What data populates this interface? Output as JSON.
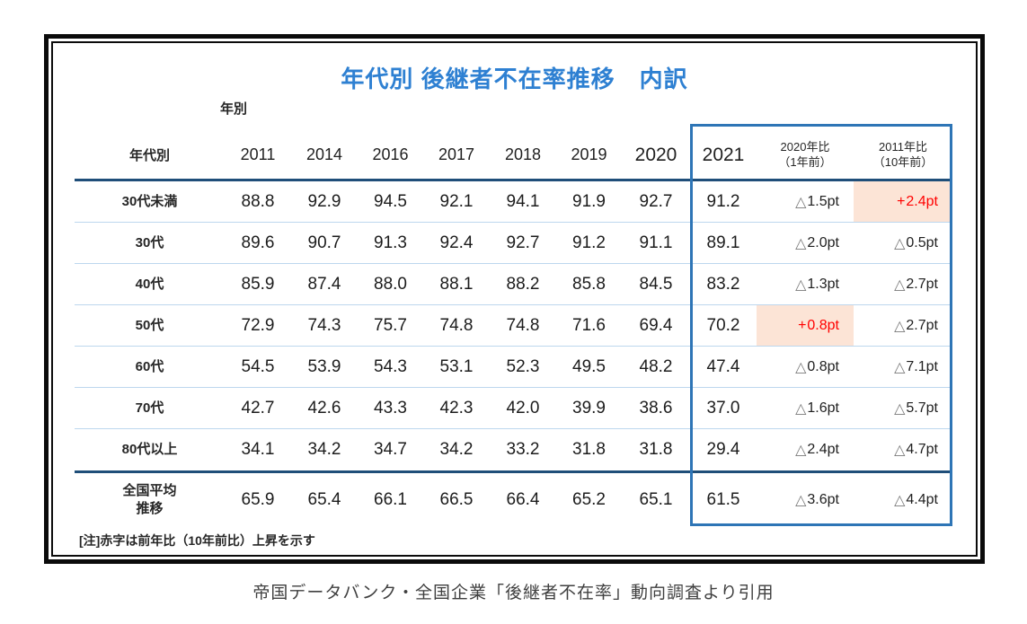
{
  "table": {
    "title": "年代別 後継者不在率推移　内訳",
    "axis_labels": {
      "year": "年別",
      "age_group": "年代別"
    },
    "year_columns": [
      "2011",
      "2014",
      "2016",
      "2017",
      "2018",
      "2019",
      "2020"
    ],
    "current_year": "2021",
    "compare_columns": [
      {
        "line1": "2020年比",
        "line2": "（1年前）"
      },
      {
        "line1": "2011年比",
        "line2": "（10年前）"
      }
    ],
    "rows": [
      {
        "label": "30代未満",
        "values": [
          "88.8",
          "92.9",
          "94.5",
          "92.1",
          "94.1",
          "91.9",
          "92.7",
          "91.2"
        ],
        "vs_2020": {
          "sign": "△",
          "value": "1.5pt",
          "increase": false
        },
        "vs_2011": {
          "sign": "+",
          "value": "2.4pt",
          "increase": true
        }
      },
      {
        "label": "30代",
        "values": [
          "89.6",
          "90.7",
          "91.3",
          "92.4",
          "92.7",
          "91.2",
          "91.1",
          "89.1"
        ],
        "vs_2020": {
          "sign": "△",
          "value": "2.0pt",
          "increase": false
        },
        "vs_2011": {
          "sign": "△",
          "value": "0.5pt",
          "increase": false
        }
      },
      {
        "label": "40代",
        "values": [
          "85.9",
          "87.4",
          "88.0",
          "88.1",
          "88.2",
          "85.8",
          "84.5",
          "83.2"
        ],
        "vs_2020": {
          "sign": "△",
          "value": "1.3pt",
          "increase": false
        },
        "vs_2011": {
          "sign": "△",
          "value": "2.7pt",
          "increase": false
        }
      },
      {
        "label": "50代",
        "values": [
          "72.9",
          "74.3",
          "75.7",
          "74.8",
          "74.8",
          "71.6",
          "69.4",
          "70.2"
        ],
        "vs_2020": {
          "sign": "+",
          "value": "0.8pt",
          "increase": true
        },
        "vs_2011": {
          "sign": "△",
          "value": "2.7pt",
          "increase": false
        }
      },
      {
        "label": "60代",
        "values": [
          "54.5",
          "53.9",
          "54.3",
          "53.1",
          "52.3",
          "49.5",
          "48.2",
          "47.4"
        ],
        "vs_2020": {
          "sign": "△",
          "value": "0.8pt",
          "increase": false
        },
        "vs_2011": {
          "sign": "△",
          "value": "7.1pt",
          "increase": false
        }
      },
      {
        "label": "70代",
        "values": [
          "42.7",
          "42.6",
          "43.3",
          "42.3",
          "42.0",
          "39.9",
          "38.6",
          "37.0"
        ],
        "vs_2020": {
          "sign": "△",
          "value": "1.6pt",
          "increase": false
        },
        "vs_2011": {
          "sign": "△",
          "value": "5.7pt",
          "increase": false
        }
      },
      {
        "label": "80代以上",
        "values": [
          "34.1",
          "34.2",
          "34.7",
          "34.2",
          "33.2",
          "31.8",
          "31.8",
          "29.4"
        ],
        "vs_2020": {
          "sign": "△",
          "value": "2.4pt",
          "increase": false
        },
        "vs_2011": {
          "sign": "△",
          "value": "4.7pt",
          "increase": false
        }
      },
      {
        "label": "全国平均\n推移",
        "values": [
          "65.9",
          "65.4",
          "66.1",
          "66.5",
          "66.4",
          "65.2",
          "65.1",
          "61.5"
        ],
        "vs_2020": {
          "sign": "△",
          "value": "3.6pt",
          "increase": false
        },
        "vs_2011": {
          "sign": "△",
          "value": "4.4pt",
          "increase": false
        }
      }
    ],
    "note": "[注]赤字は前年比（10年前比）上昇を示す"
  },
  "caption": "帝国データバンク・全国企業「後継者不在率」動向調査より引用",
  "colors": {
    "title_blue": "#2e80d2",
    "thick_rule_navy": "#1f4e79",
    "row_separator_light_blue": "#bdd7ee",
    "highlight_box_blue": "#2e75b6",
    "increase_cell_pink": "#fce4d6",
    "increase_text_red": "#ff0000",
    "triangle_gray": "#7a7a7a",
    "frame_black": "#0b0b0b"
  },
  "chart_data": {
    "type": "table",
    "title": "年代別 後継者不在率推移 内訳",
    "row_header": "年代別",
    "column_header": "年別",
    "columns": [
      "2011",
      "2014",
      "2016",
      "2017",
      "2018",
      "2019",
      "2020",
      "2021",
      "2020年比（1年前）",
      "2011年比（10年前）"
    ],
    "rows": [
      {
        "label": "30代未満",
        "values": [
          88.8,
          92.9,
          94.5,
          92.1,
          94.1,
          91.9,
          92.7,
          91.2
        ],
        "vs_2020": "△1.5pt",
        "vs_2011": "+2.4pt"
      },
      {
        "label": "30代",
        "values": [
          89.6,
          90.7,
          91.3,
          92.4,
          92.7,
          91.2,
          91.1,
          89.1
        ],
        "vs_2020": "△2.0pt",
        "vs_2011": "△0.5pt"
      },
      {
        "label": "40代",
        "values": [
          85.9,
          87.4,
          88.0,
          88.1,
          88.2,
          85.8,
          84.5,
          83.2
        ],
        "vs_2020": "△1.3pt",
        "vs_2011": "△2.7pt"
      },
      {
        "label": "50代",
        "values": [
          72.9,
          74.3,
          75.7,
          74.8,
          74.8,
          71.6,
          69.4,
          70.2
        ],
        "vs_2020": "+0.8pt",
        "vs_2011": "△2.7pt"
      },
      {
        "label": "60代",
        "values": [
          54.5,
          53.9,
          54.3,
          53.1,
          52.3,
          49.5,
          48.2,
          47.4
        ],
        "vs_2020": "△0.8pt",
        "vs_2011": "△7.1pt"
      },
      {
        "label": "70代",
        "values": [
          42.7,
          42.6,
          43.3,
          42.3,
          42.0,
          39.9,
          38.6,
          37.0
        ],
        "vs_2020": "△1.6pt",
        "vs_2011": "△5.7pt"
      },
      {
        "label": "80代以上",
        "values": [
          34.1,
          34.2,
          34.7,
          34.2,
          33.2,
          31.8,
          31.8,
          29.4
        ],
        "vs_2020": "△2.4pt",
        "vs_2011": "△4.7pt"
      },
      {
        "label": "全国平均推移",
        "values": [
          65.9,
          65.4,
          66.1,
          66.5,
          66.4,
          65.2,
          65.1,
          61.5
        ],
        "vs_2020": "△3.6pt",
        "vs_2011": "△4.4pt"
      }
    ],
    "highlighted_increase_cells": [
      {
        "row": "30代未満",
        "column": "2011年比（10年前）",
        "value": "+2.4pt"
      },
      {
        "row": "50代",
        "column": "2020年比（1年前）",
        "value": "+0.8pt"
      }
    ],
    "note": "[注]赤字は前年比（10年前比）上昇を示す"
  }
}
